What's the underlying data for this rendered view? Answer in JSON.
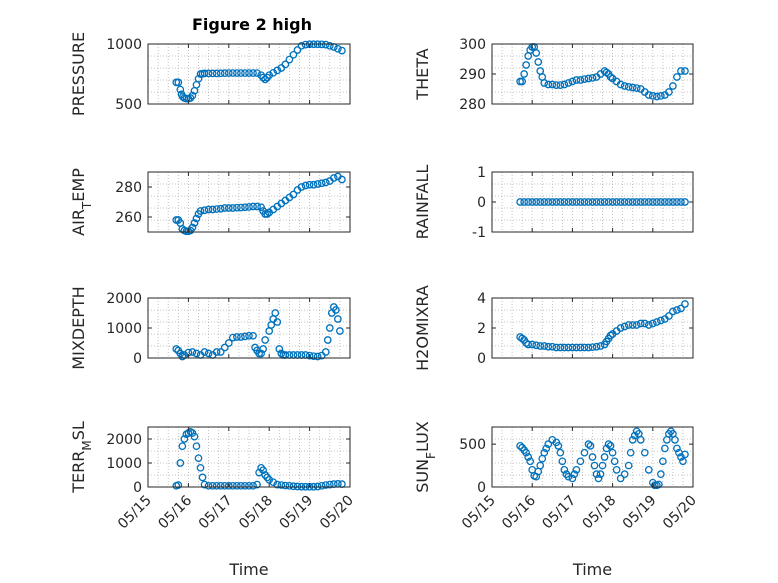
{
  "figure": {
    "title": "Figure 2 high"
  },
  "colors": {
    "marker": "#0072BD",
    "axis": "#262626",
    "grid": "#b4b4b4"
  },
  "x_axis": {
    "label": "Time",
    "ticks": [
      0,
      1,
      2,
      3,
      4,
      5
    ],
    "tick_labels": [
      "05/15",
      "05/16",
      "05/17",
      "05/18",
      "05/19",
      "05/20"
    ],
    "range": [
      0,
      5
    ]
  },
  "chart_data": [
    {
      "type": "scatter",
      "ylabel": "PRESSURE",
      "ylim": [
        500,
        1000
      ],
      "yticks": [
        500,
        1000
      ],
      "grid": true,
      "x": [
        0.7,
        0.75,
        0.8,
        0.83,
        0.86,
        0.9,
        0.95,
        1.0,
        1.05,
        1.1,
        1.15,
        1.2,
        1.25,
        1.3,
        1.35,
        1.4,
        1.5,
        1.6,
        1.7,
        1.8,
        1.9,
        2.0,
        2.1,
        2.2,
        2.3,
        2.4,
        2.5,
        2.6,
        2.7,
        2.8,
        2.85,
        2.9,
        2.95,
        3.0,
        3.1,
        3.2,
        3.3,
        3.4,
        3.5,
        3.6,
        3.7,
        3.8,
        3.9,
        4.0,
        4.1,
        4.2,
        4.3,
        4.4,
        4.5,
        4.6,
        4.7,
        4.8
      ],
      "y": [
        680,
        680,
        620,
        580,
        560,
        550,
        545,
        545,
        550,
        570,
        610,
        660,
        710,
        750,
        752,
        755,
        755,
        755,
        755,
        756,
        757,
        758,
        758,
        758,
        758,
        758,
        758,
        758,
        758,
        740,
        720,
        705,
        720,
        740,
        760,
        780,
        800,
        830,
        870,
        910,
        950,
        985,
        995,
        998,
        998,
        998,
        997,
        995,
        985,
        975,
        960,
        945
      ]
    },
    {
      "type": "scatter",
      "ylabel": "THETA",
      "ylim": [
        280,
        300
      ],
      "yticks": [
        280,
        290,
        300
      ],
      "grid": true,
      "x": [
        0.7,
        0.75,
        0.8,
        0.85,
        0.9,
        0.95,
        1.0,
        1.05,
        1.1,
        1.15,
        1.2,
        1.25,
        1.3,
        1.4,
        1.5,
        1.6,
        1.7,
        1.8,
        1.9,
        2.0,
        2.1,
        2.2,
        2.3,
        2.4,
        2.5,
        2.6,
        2.7,
        2.8,
        2.85,
        2.9,
        2.95,
        3.0,
        3.1,
        3.2,
        3.3,
        3.4,
        3.5,
        3.6,
        3.7,
        3.8,
        3.9,
        4.0,
        4.1,
        4.2,
        4.3,
        4.4,
        4.5,
        4.6,
        4.7,
        4.8
      ],
      "y": [
        287.5,
        287.5,
        290,
        293,
        296,
        298,
        299,
        299,
        297,
        294,
        291,
        289,
        287,
        286.5,
        286.5,
        286.3,
        286.3,
        286.5,
        287,
        287.5,
        288,
        288,
        288.3,
        288.5,
        288.7,
        289,
        290,
        291,
        290.5,
        290,
        289,
        288.5,
        287.5,
        286.5,
        286,
        285.7,
        285.5,
        285.3,
        285,
        284,
        283,
        282.7,
        282.5,
        282.7,
        283,
        284,
        286,
        289,
        291,
        291
      ]
    },
    {
      "type": "scatter",
      "ylabel": "AIR_TEMP",
      "ylim": [
        250,
        290
      ],
      "yticks": [
        260,
        280
      ],
      "grid": true,
      "x": [
        0.7,
        0.75,
        0.8,
        0.85,
        0.9,
        0.95,
        1.0,
        1.05,
        1.1,
        1.15,
        1.2,
        1.25,
        1.3,
        1.4,
        1.5,
        1.6,
        1.7,
        1.8,
        1.9,
        2.0,
        2.1,
        2.2,
        2.3,
        2.4,
        2.5,
        2.6,
        2.7,
        2.8,
        2.85,
        2.9,
        2.95,
        3.0,
        3.1,
        3.2,
        3.3,
        3.4,
        3.5,
        3.6,
        3.7,
        3.8,
        3.9,
        4.0,
        4.1,
        4.2,
        4.3,
        4.4,
        4.5,
        4.6,
        4.7,
        4.8
      ],
      "y": [
        258,
        258,
        256,
        252,
        251,
        250.5,
        250.5,
        251,
        253,
        256,
        259,
        262,
        264,
        264.5,
        265,
        265,
        265.3,
        265.5,
        266,
        266,
        266,
        266.2,
        266.3,
        266.5,
        266.7,
        267,
        267,
        266.5,
        264,
        262,
        262,
        263,
        265,
        267,
        269,
        271,
        273,
        275,
        278,
        280,
        281,
        281.5,
        281.5,
        282,
        282.5,
        283,
        284,
        286,
        287,
        285
      ]
    },
    {
      "type": "scatter",
      "ylabel": "RAINFALL",
      "ylim": [
        -1,
        1
      ],
      "yticks": [
        -1,
        0,
        1
      ],
      "grid": true,
      "x": [
        0.7,
        0.8,
        0.9,
        1.0,
        1.1,
        1.2,
        1.3,
        1.4,
        1.5,
        1.6,
        1.7,
        1.8,
        1.9,
        2.0,
        2.1,
        2.2,
        2.3,
        2.4,
        2.5,
        2.6,
        2.7,
        2.8,
        2.9,
        3.0,
        3.1,
        3.2,
        3.3,
        3.4,
        3.5,
        3.6,
        3.7,
        3.8,
        3.9,
        4.0,
        4.1,
        4.2,
        4.3,
        4.4,
        4.5,
        4.6,
        4.7,
        4.8
      ],
      "y": [
        0,
        0,
        0,
        0,
        0,
        0,
        0,
        0,
        0,
        0,
        0,
        0,
        0,
        0,
        0,
        0,
        0,
        0,
        0,
        0,
        0,
        0,
        0,
        0,
        0,
        0,
        0,
        0,
        0,
        0,
        0,
        0,
        0,
        0,
        0,
        0,
        0,
        0,
        0,
        0,
        0,
        0
      ]
    },
    {
      "type": "scatter",
      "ylabel": "MIXDEPTH",
      "ylim": [
        0,
        2000
      ],
      "yticks": [
        0,
        1000,
        2000
      ],
      "grid": true,
      "x": [
        0.7,
        0.75,
        0.8,
        0.85,
        0.9,
        1.0,
        1.1,
        1.2,
        1.3,
        1.4,
        1.5,
        1.6,
        1.7,
        1.8,
        1.9,
        2.0,
        2.1,
        2.2,
        2.3,
        2.4,
        2.5,
        2.6,
        2.65,
        2.7,
        2.75,
        2.8,
        2.85,
        2.9,
        3.0,
        3.05,
        3.1,
        3.15,
        3.2,
        3.25,
        3.3,
        3.35,
        3.4,
        3.5,
        3.6,
        3.7,
        3.8,
        3.9,
        4.0,
        4.1,
        4.2,
        4.3,
        4.4,
        4.45,
        4.5,
        4.55,
        4.6,
        4.65,
        4.7,
        4.75
      ],
      "y": [
        300,
        250,
        150,
        50,
        100,
        180,
        200,
        150,
        100,
        200,
        150,
        100,
        200,
        200,
        350,
        500,
        680,
        700,
        700,
        720,
        740,
        740,
        350,
        250,
        150,
        150,
        300,
        600,
        900,
        1100,
        1300,
        1500,
        1200,
        300,
        150,
        100,
        100,
        100,
        100,
        100,
        100,
        100,
        80,
        60,
        50,
        80,
        200,
        600,
        1000,
        1500,
        1700,
        1600,
        1300,
        900
      ]
    },
    {
      "type": "scatter",
      "ylabel": "H2OMIXRA",
      "ylim": [
        0,
        4
      ],
      "yticks": [
        0,
        2,
        4
      ],
      "grid": true,
      "x": [
        0.7,
        0.75,
        0.8,
        0.85,
        0.9,
        1.0,
        1.1,
        1.2,
        1.3,
        1.4,
        1.5,
        1.6,
        1.7,
        1.8,
        1.9,
        2.0,
        2.1,
        2.2,
        2.3,
        2.4,
        2.5,
        2.6,
        2.7,
        2.8,
        2.85,
        2.9,
        2.95,
        3.0,
        3.1,
        3.2,
        3.3,
        3.4,
        3.5,
        3.6,
        3.7,
        3.8,
        3.9,
        4.0,
        4.1,
        4.2,
        4.3,
        4.4,
        4.5,
        4.6,
        4.7,
        4.8
      ],
      "y": [
        1.4,
        1.3,
        1.2,
        1.0,
        0.9,
        0.9,
        0.85,
        0.8,
        0.8,
        0.75,
        0.75,
        0.7,
        0.7,
        0.7,
        0.7,
        0.7,
        0.7,
        0.7,
        0.7,
        0.7,
        0.72,
        0.75,
        0.8,
        0.9,
        1.1,
        1.3,
        1.5,
        1.6,
        1.8,
        2.0,
        2.1,
        2.2,
        2.2,
        2.2,
        2.3,
        2.3,
        2.2,
        2.3,
        2.4,
        2.5,
        2.6,
        2.8,
        3.1,
        3.2,
        3.3,
        3.6
      ]
    },
    {
      "type": "scatter",
      "ylabel": "TERR_MSL",
      "ylim": [
        0,
        2500
      ],
      "yticks": [
        0,
        1000,
        2000
      ],
      "grid": true,
      "x": [
        0.7,
        0.75,
        0.8,
        0.85,
        0.9,
        0.95,
        1.0,
        1.05,
        1.1,
        1.15,
        1.2,
        1.25,
        1.3,
        1.35,
        1.4,
        1.5,
        1.6,
        1.7,
        1.8,
        1.9,
        2.0,
        2.1,
        2.2,
        2.3,
        2.4,
        2.5,
        2.6,
        2.7,
        2.75,
        2.8,
        2.85,
        2.9,
        2.95,
        3.0,
        3.1,
        3.2,
        3.3,
        3.4,
        3.5,
        3.6,
        3.7,
        3.8,
        3.9,
        4.0,
        4.1,
        4.2,
        4.3,
        4.4,
        4.5,
        4.6,
        4.7,
        4.8
      ],
      "y": [
        50,
        80,
        1000,
        1700,
        2000,
        2200,
        2250,
        2300,
        2250,
        2100,
        1700,
        1200,
        800,
        400,
        100,
        50,
        50,
        50,
        50,
        50,
        50,
        50,
        50,
        50,
        50,
        50,
        50,
        100,
        600,
        800,
        700,
        500,
        400,
        300,
        200,
        100,
        80,
        60,
        50,
        30,
        20,
        10,
        10,
        10,
        10,
        20,
        50,
        80,
        100,
        120,
        130,
        120
      ]
    },
    {
      "type": "scatter",
      "ylabel": "SUN_FLUX",
      "ylim": [
        0,
        700
      ],
      "yticks": [
        0,
        500
      ],
      "grid": true,
      "x": [
        0.7,
        0.75,
        0.8,
        0.85,
        0.9,
        0.95,
        1.0,
        1.05,
        1.1,
        1.15,
        1.2,
        1.25,
        1.3,
        1.35,
        1.4,
        1.5,
        1.6,
        1.65,
        1.7,
        1.75,
        1.8,
        1.85,
        1.9,
        2.0,
        2.05,
        2.1,
        2.2,
        2.3,
        2.4,
        2.45,
        2.5,
        2.55,
        2.6,
        2.65,
        2.7,
        2.75,
        2.8,
        2.85,
        2.9,
        2.95,
        3.0,
        3.05,
        3.1,
        3.2,
        3.3,
        3.4,
        3.45,
        3.5,
        3.55,
        3.6,
        3.65,
        3.7,
        3.8,
        3.9,
        4.0,
        4.05,
        4.1,
        4.15,
        4.2,
        4.25,
        4.3,
        4.35,
        4.4,
        4.45,
        4.5,
        4.55,
        4.6,
        4.65,
        4.7,
        4.75,
        4.8
      ],
      "y": [
        480,
        460,
        430,
        400,
        350,
        300,
        200,
        130,
        120,
        180,
        250,
        330,
        400,
        450,
        500,
        550,
        520,
        480,
        400,
        300,
        200,
        150,
        120,
        100,
        150,
        200,
        300,
        400,
        500,
        480,
        350,
        250,
        150,
        100,
        150,
        250,
        350,
        450,
        500,
        480,
        400,
        300,
        200,
        100,
        150,
        250,
        400,
        550,
        600,
        650,
        620,
        550,
        400,
        200,
        50,
        20,
        20,
        30,
        150,
        300,
        450,
        550,
        620,
        650,
        620,
        550,
        450,
        400,
        350,
        300,
        380
      ]
    }
  ]
}
